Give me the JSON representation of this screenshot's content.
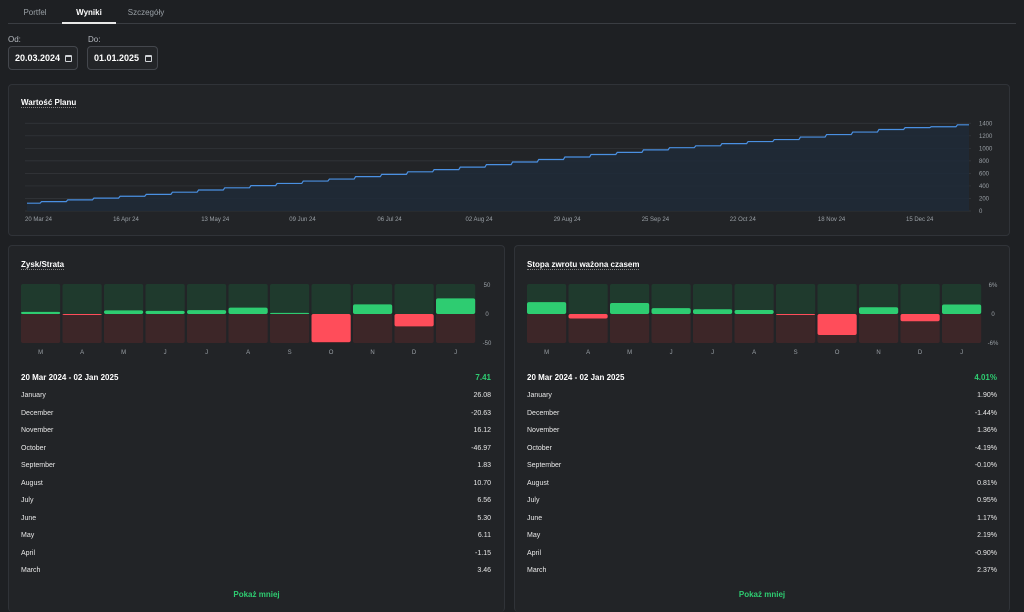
{
  "tabs": [
    {
      "label": "Portfel",
      "active": false
    },
    {
      "label": "Wyniki",
      "active": true
    },
    {
      "label": "Szczegóły",
      "active": false
    }
  ],
  "dates": {
    "from_label": "Od:",
    "from_value": "20.03.2024",
    "to_label": "Do:",
    "to_value": "01.01.2025"
  },
  "plan_card": {
    "title": "Wartość Planu"
  },
  "chart_data": [
    {
      "type": "area",
      "title": "Wartość Planu",
      "x_ticks": [
        "20 Mar 24",
        "16 Apr 24",
        "13 May 24",
        "09 Jun 24",
        "06 Jul 24",
        "02 Aug 24",
        "29 Aug 24",
        "25 Sep 24",
        "22 Oct 24",
        "18 Nov 24",
        "15 Dec 24"
      ],
      "y_ticks": [
        0,
        200,
        400,
        600,
        800,
        1000,
        1200,
        1400
      ],
      "ylim": [
        0,
        1500
      ],
      "grid": true,
      "series": [
        {
          "values": [
            125,
            150,
            178,
            205,
            235,
            265,
            300,
            335,
            370,
            405,
            440,
            478,
            510,
            548,
            585,
            625,
            660,
            700,
            740,
            782,
            822,
            862,
            902,
            935,
            975,
            1010,
            1040,
            1075,
            1108,
            1140,
            1180,
            1220,
            1260,
            1300,
            1330,
            1345,
            1375
          ]
        }
      ],
      "colors": {
        "line": "#4a90e2",
        "fill": "#1f2a38"
      }
    },
    {
      "type": "bar",
      "title": "Zysk/Strata",
      "categories": [
        "M",
        "A",
        "M",
        "J",
        "J",
        "A",
        "S",
        "O",
        "N",
        "D",
        "J"
      ],
      "values": [
        3.46,
        -1.15,
        6.11,
        5.3,
        6.56,
        10.7,
        1.83,
        -46.97,
        16.12,
        -20.63,
        26.08
      ],
      "y_ticks": [
        "50",
        "0",
        "-50"
      ],
      "ylim": [
        -50,
        50
      ]
    },
    {
      "type": "bar",
      "title": "Stopa zwrotu ważona czasem",
      "categories": [
        "M",
        "A",
        "M",
        "J",
        "J",
        "A",
        "S",
        "O",
        "N",
        "D",
        "J"
      ],
      "values": [
        2.37,
        -0.9,
        2.19,
        1.17,
        0.95,
        0.81,
        -0.1,
        -4.19,
        1.36,
        -1.44,
        1.9
      ],
      "y_ticks": [
        "6%",
        "0",
        "-6%"
      ],
      "ylim": [
        -6,
        6
      ]
    }
  ],
  "pl_panel": {
    "title": "Zysk/Strata",
    "range": "20 Mar 2024 - 02 Jan 2025",
    "total": "7.41",
    "rows": [
      {
        "month": "January",
        "value": "26.08"
      },
      {
        "month": "December",
        "value": "-20.63"
      },
      {
        "month": "November",
        "value": "16.12"
      },
      {
        "month": "October",
        "value": "-46.97"
      },
      {
        "month": "September",
        "value": "1.83"
      },
      {
        "month": "August",
        "value": "10.70"
      },
      {
        "month": "July",
        "value": "6.56"
      },
      {
        "month": "June",
        "value": "5.30"
      },
      {
        "month": "May",
        "value": "6.11"
      },
      {
        "month": "April",
        "value": "-1.15"
      },
      {
        "month": "March",
        "value": "3.46"
      }
    ],
    "show_less": "Pokaż mniej"
  },
  "twr_panel": {
    "title": "Stopa zwrotu ważona czasem",
    "range": "20 Mar 2024 - 02 Jan 2025",
    "total": "4.01%",
    "rows": [
      {
        "month": "January",
        "value": "1.90%"
      },
      {
        "month": "December",
        "value": "-1.44%"
      },
      {
        "month": "November",
        "value": "1.36%"
      },
      {
        "month": "October",
        "value": "-4.19%"
      },
      {
        "month": "September",
        "value": "-0.10%"
      },
      {
        "month": "August",
        "value": "0.81%"
      },
      {
        "month": "July",
        "value": "0.95%"
      },
      {
        "month": "June",
        "value": "1.17%"
      },
      {
        "month": "May",
        "value": "2.19%"
      },
      {
        "month": "April",
        "value": "-0.90%"
      },
      {
        "month": "March",
        "value": "2.37%"
      }
    ],
    "show_less": "Pokaż mniej"
  },
  "colors": {
    "positive": "#2ecc71",
    "negative": "#ff4d5a",
    "pos_bg": "#1f3a2d",
    "neg_bg": "#3d2628"
  }
}
